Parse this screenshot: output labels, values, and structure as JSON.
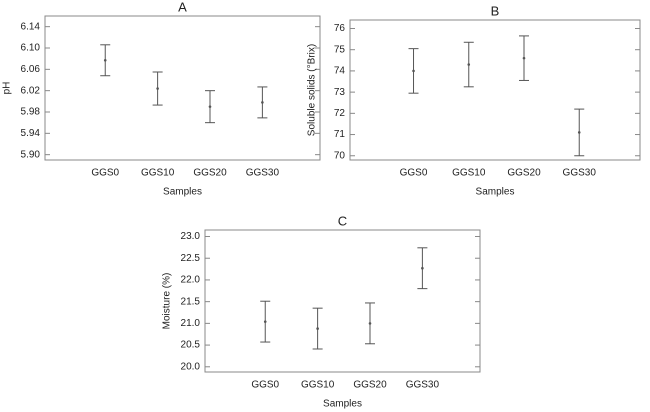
{
  "chart_data": [
    {
      "type": "errorbar",
      "title": "A",
      "x_label": "Samples",
      "y_label": "pH",
      "categories": [
        "GGS0",
        "GGS10",
        "GGS20",
        "GGS30"
      ],
      "values": [
        6.077,
        6.024,
        5.99,
        5.998
      ],
      "errors": [
        0.029,
        0.031,
        0.03,
        0.029
      ],
      "color": "#555555",
      "ylim": [
        5.89,
        6.16
      ],
      "yticks": [
        {
          "value": 5.9,
          "label": "5.90"
        },
        5.94,
        5.98,
        6.02,
        6.06,
        {
          "value": 6.1,
          "label": "6.10"
        },
        6.14
      ]
    },
    {
      "type": "errorbar",
      "title": "B",
      "x_label": "Samples",
      "y_label": "Soluble solids (°Brix)",
      "categories": [
        "GGS0",
        "GGS10",
        "GGS20",
        "GGS30"
      ],
      "values": [
        74.0,
        74.3,
        74.6,
        71.1
      ],
      "errors": [
        1.05,
        1.05,
        1.05,
        1.1
      ],
      "color": "#555555",
      "ylim": [
        69.8,
        76.4
      ],
      "yticks": [
        70,
        71,
        72,
        73,
        74,
        75,
        76
      ]
    },
    {
      "type": "errorbar",
      "title": "C",
      "x_label": "Samples",
      "y_label": "Moisture (%)",
      "categories": [
        "GGS0",
        "GGS10",
        "GGS20",
        "GGS30"
      ],
      "values": [
        21.04,
        20.88,
        21.0,
        22.27
      ],
      "errors": [
        0.47,
        0.47,
        0.47,
        0.47
      ],
      "color": "#555555",
      "ylim": [
        19.88,
        23.15
      ],
      "yticks": [
        {
          "value": 20,
          "label": "20.0"
        },
        20.5,
        {
          "value": 21,
          "label": "21.0"
        },
        21.5,
        {
          "value": 22,
          "label": "22.0"
        },
        22.5,
        {
          "value": 23,
          "label": "23.0"
        }
      ]
    }
  ]
}
